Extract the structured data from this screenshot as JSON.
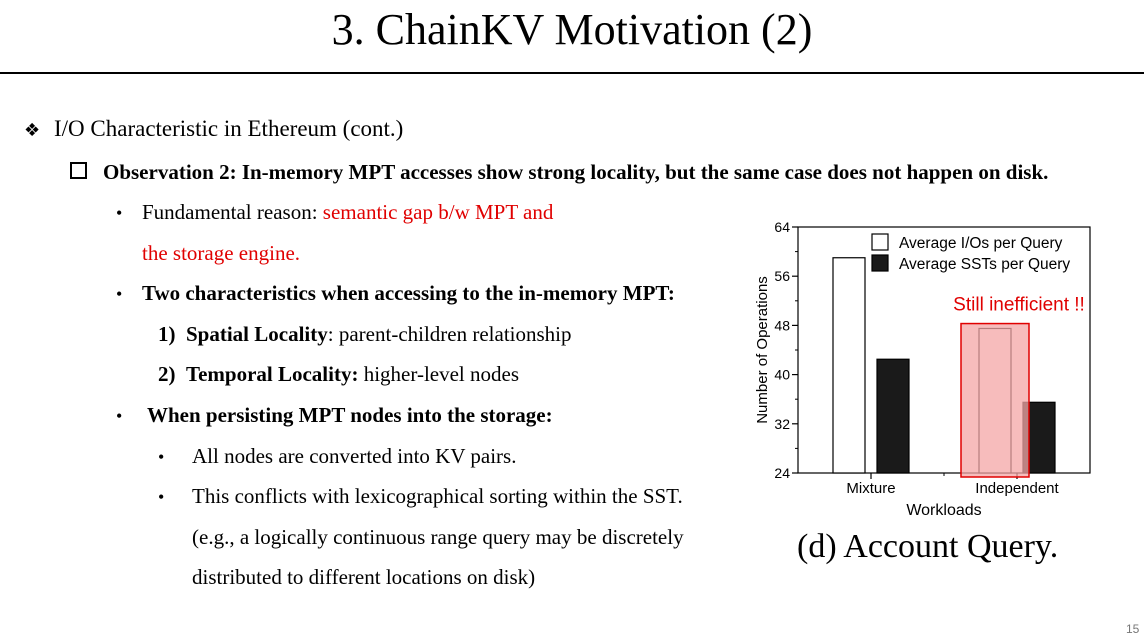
{
  "title": "3. ChainKV Motivation (2)",
  "section_heading": "I/O Characteristic in Ethereum (cont.)",
  "observation": "Observation 2:  In-memory MPT accesses show strong locality, but the same case does not happen on disk.",
  "bullets": {
    "fundamental_prefix": "Fundamental reason: ",
    "fundamental_red_1": "semantic gap b/w MPT and",
    "fundamental_red_2": "the storage engine.",
    "two_characteristics": "Two characteristics when accessing to the in-memory MPT:",
    "item1_num": "1)",
    "item1_bold": "Spatial Locality",
    "item1_rest": ": parent-children relationship",
    "item2_num": "2)",
    "item2_bold": "Temporal Locality:",
    "item2_rest": " higher-level nodes",
    "persisting": "When persisting MPT nodes into the storage:",
    "sub1": "All nodes are converted into KV pairs.",
    "sub2": "This conflicts with lexicographical sorting within the SST.",
    "sub2_cont1": "(e.g., a logically continuous range query may be discretely",
    "sub2_cont2": "distributed to different locations on disk)"
  },
  "caption": "(d) Account Query.",
  "page_number": "15",
  "annotation": "Still inefficient !!",
  "colors": {
    "red": "#e00000",
    "highlight": "#f4a6a6"
  },
  "chart_data": {
    "type": "bar",
    "categories": [
      "Mixture",
      "Independent"
    ],
    "series": [
      {
        "name": "Average I/Os per Query",
        "values": [
          59,
          47.5
        ],
        "fill": "#ffffff"
      },
      {
        "name": "Average SSTs per Query",
        "values": [
          42.5,
          35.5
        ],
        "fill": "#1a1a1a"
      }
    ],
    "ylim": [
      24,
      64
    ],
    "yticks": [
      "24",
      "32",
      "40",
      "48",
      "56",
      "64"
    ],
    "xlabel": "Workloads",
    "ylabel": "Number of Operations",
    "legend_position": "top-right",
    "grid": false
  }
}
